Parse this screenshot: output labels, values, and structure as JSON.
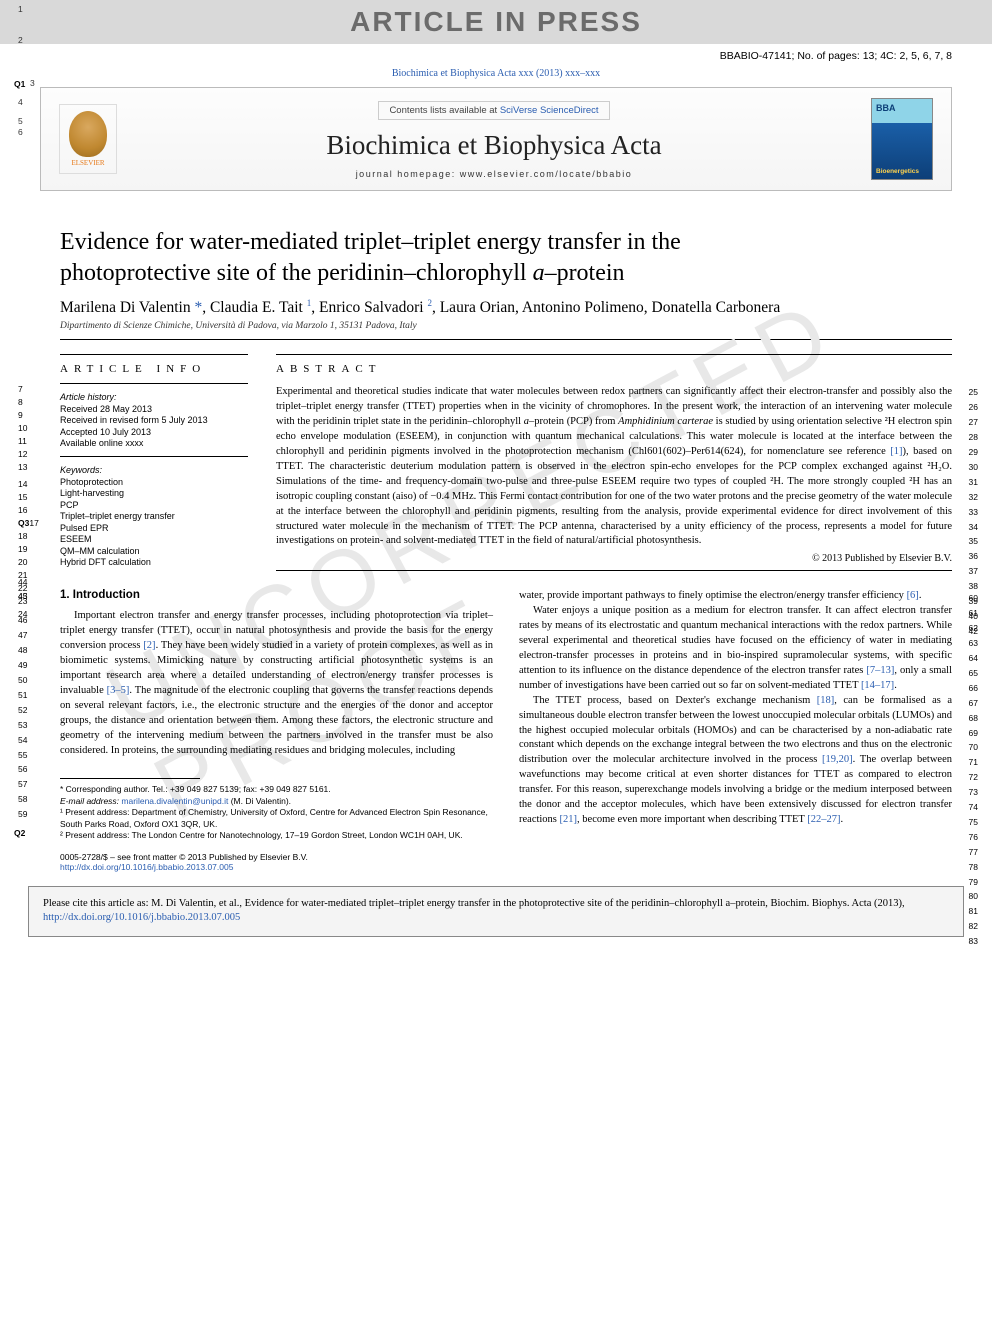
{
  "banner": "ARTICLE IN PRESS",
  "doc_id": "BBABIO-47141; No. of pages: 13; 4C: 2, 5, 6, 7, 8",
  "journal_ref": "Biochimica et Biophysica Acta xxx (2013) xxx–xxx",
  "header": {
    "contents_prefix": "Contents lists available at ",
    "contents_link": "SciVerse ScienceDirect",
    "journal_name": "Biochimica et Biophysica Acta",
    "homepage": "journal homepage: www.elsevier.com/locate/bbabio",
    "elsevier_label": "ELSEVIER",
    "cover_bba": "BBA",
    "cover_bio": "Bioenergetics"
  },
  "watermark": "UNCORRECTED PROOF",
  "title": {
    "line1": "Evidence for water-mediated triplet–triplet energy transfer in the",
    "line2": "photoprotective site of the peridinin–chlorophyll a–protein"
  },
  "authors_html": "Marilena Di Valentin <span class='corr'>*</span>, Claudia E. Tait <sup>1</sup>, Enrico Salvadori <sup>2</sup>, Laura Orian, Antonino Polimeno, Donatella Carbonera",
  "affiliation": "Dipartimento di Scienze Chimiche, Università di Padova, via Marzolo 1, 35131 Padova, Italy",
  "article_info": {
    "title": "article info",
    "history_head": "Article history:",
    "received": "Received 28 May 2013",
    "revised": "Received in revised form 5 July 2013",
    "accepted": "Accepted 10 July 2013",
    "available": "Available online xxxx",
    "keywords_head": "Keywords:",
    "keywords": [
      "Photoprotection",
      "Light-harvesting",
      "PCP",
      "Triplet–triplet energy transfer",
      "Pulsed EPR",
      "ESEEM",
      "QM–MM calculation",
      "Hybrid DFT calculation"
    ]
  },
  "abstract": {
    "title": "abstract",
    "text": "Experimental and theoretical studies indicate that water molecules between redox partners can significantly affect their electron-transfer and possibly also the triplet–triplet energy transfer (TTET) properties when in the vicinity of chromophores. In the present work, the interaction of an intervening water molecule with the peridinin triplet state in the peridinin–chlorophyll a–protein (PCP) from Amphidinium carterae is studied by using orientation selective ²H electron spin echo envelope modulation (ESEEM), in conjunction with quantum mechanical calculations. This water molecule is located at the interface between the chlorophyll and peridinin pigments involved in the photoprotection mechanism (Chl601(602)–Per614(624), for nomenclature see reference [1]), based on TTET. The characteristic deuterium modulation pattern is observed in the electron spin-echo envelopes for the PCP complex exchanged against ²H₂O. Simulations of the time- and frequency-domain two-pulse and three-pulse ESEEM require two types of coupled ²H. The more strongly coupled ²H has an isotropic coupling constant (aiso) of −0.4 MHz. This Fermi contact contribution for one of the two water protons and the precise geometry of the water molecule at the interface between the chlorophyll and peridinin pigments, resulting from the analysis, provide experimental evidence for direct involvement of this structured water molecule in the mechanism of TTET. The PCP antenna, characterised by a unity efficiency of the process, represents a model for future investigations on protein- and solvent-mediated TTET in the field of natural/artificial photosynthesis.",
    "copyright": "© 2013 Published by Elsevier B.V."
  },
  "intro": {
    "heading": "1. Introduction",
    "col1_p1": "Important electron transfer and energy transfer processes, including photoprotection via triplet–triplet energy transfer (TTET), occur in natural photosynthesis and provide the basis for the energy conversion process [2]. They have been widely studied in a variety of protein complexes, as well as in biomimetic systems. Mimicking nature by constructing artificial photosynthetic systems is an important research area where a detailed understanding of electron/energy transfer processes is invaluable [3–5]. The magnitude of the electronic coupling that governs the transfer reactions depends on several relevant factors, i.e., the electronic structure and the energies of the donor and acceptor groups, the distance and orientation between them. Among these factors, the electronic structure and geometry of the intervening medium between the partners involved in the transfer must be also considered. In proteins, the surrounding mediating residues and bridging molecules, including",
    "col2_p1": "water, provide important pathways to finely optimise the electron/energy transfer efficiency [6].",
    "col2_p2": "Water enjoys a unique position as a medium for electron transfer. It can affect electron transfer rates by means of its electrostatic and quantum mechanical interactions with the redox partners. While several experimental and theoretical studies have focused on the efficiency of water in mediating electron-transfer processes in proteins and in bio-inspired supramolecular systems, with specific attention to its influence on the distance dependence of the electron transfer rates [7–13], only a small number of investigations have been carried out so far on solvent-mediated TTET [14–17].",
    "col2_p3": "The TTET process, based on Dexter's exchange mechanism [18], can be formalised as a simultaneous double electron transfer between the lowest unoccupied molecular orbitals (LUMOs) and the highest occupied molecular orbitals (HOMOs) and can be characterised by a non-adiabatic rate constant which depends on the exchange integral between the two electrons and thus on the electronic distribution over the molecular architecture involved in the process [19,20]. The overlap between wavefunctions may become critical at even shorter distances for TTET as compared to electron transfer. For this reason, superexchange models involving a bridge or the medium interposed between the donor and the acceptor molecules, which have been extensively discussed for electron transfer reactions [21], become even more important when describing TTET [22–27]."
  },
  "footnotes": {
    "corr": "* Corresponding author. Tel.: +39 049 827 5139; fax: +39 049 827 5161.",
    "email_label": "E-mail address: ",
    "email": "marilena.divalentin@unipd.it",
    "email_suffix": " (M. Di Valentin).",
    "fn1": "¹ Present address: Department of Chemistry, University of Oxford, Centre for Advanced Electron Spin Resonance, South Parks Road, Oxford OX1 3QR, UK.",
    "fn2": "² Present address: The London Centre for Nanotechnology, 17–19 Gordon Street, London WC1H 0AH, UK."
  },
  "copyright_footer": {
    "line1": "0005-2728/$ – see front matter © 2013 Published by Elsevier B.V.",
    "doi": "http://dx.doi.org/10.1016/j.bbabio.2013.07.005"
  },
  "citation_box": "Please cite this article as: M. Di Valentin, et al., Evidence for water-mediated triplet–triplet energy transfer in the photoprotective site of the peridinin–chlorophyll a–protein, Biochim. Biophys. Acta (2013), ",
  "citation_doi": "http://dx.doi.org/10.1016/j.bbabio.2013.07.005",
  "colors": {
    "banner_bg": "#d9d9d9",
    "banner_text": "#6b6b6b",
    "link": "#2a5db0",
    "watermark": "#e8e8e8",
    "elsevier_orange": "#e67817",
    "cover_top": "#8fd4e8",
    "cover_bottom": "#0d3f78",
    "citation_bg": "#f4f4f4"
  },
  "line_numbers": {
    "left_title": [
      "1",
      "2"
    ],
    "q1": "Q1",
    "left_authors": [
      "3",
      "4",
      "5",
      "6"
    ],
    "left_info": [
      "7",
      "8",
      "9",
      "10",
      "11",
      "12",
      "13",
      "14",
      "15",
      "16"
    ],
    "q3": "Q3",
    "left_keywords": [
      "17",
      "18",
      "19",
      "20",
      "21",
      "22",
      "23",
      "24"
    ],
    "left_gap": [
      "44",
      "43",
      "45"
    ],
    "left_body": [
      "46",
      "47",
      "48",
      "49",
      "50",
      "51",
      "52",
      "53",
      "54",
      "55",
      "56",
      "57",
      "58",
      "59"
    ],
    "q2": "Q2",
    "right_abstract": [
      "25",
      "26",
      "27",
      "28",
      "29",
      "30",
      "31",
      "32",
      "33",
      "34",
      "35",
      "36",
      "37",
      "38",
      "39",
      "40",
      "42"
    ],
    "right_body": [
      "60",
      "61",
      "62",
      "63",
      "64",
      "65",
      "66",
      "67",
      "68",
      "69",
      "70",
      "71",
      "72",
      "73",
      "74",
      "75",
      "76",
      "77",
      "78",
      "79",
      "80",
      "81",
      "82",
      "83"
    ]
  }
}
